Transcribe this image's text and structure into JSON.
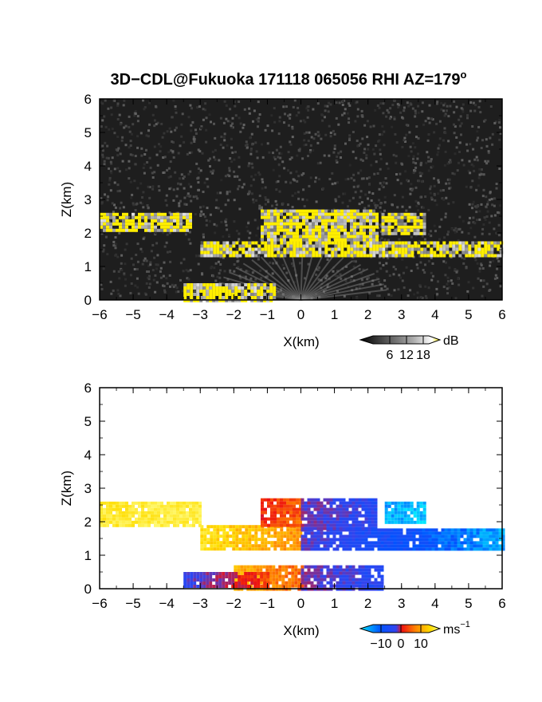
{
  "figure": {
    "title": "3D−CDL@Fukuoka 171118 065056 RHI AZ=179",
    "title_superscript": "o"
  },
  "chart_data": [
    {
      "type": "heatmap",
      "name": "reflectivity",
      "xlabel": "X(km)",
      "ylabel": "Z(km)",
      "xlim": [
        -6,
        6
      ],
      "ylim": [
        0,
        6
      ],
      "x_ticks": [
        -6,
        -5,
        -4,
        -3,
        -2,
        -1,
        0,
        1,
        2,
        3,
        4,
        5,
        6
      ],
      "y_ticks": [
        0,
        1,
        2,
        3,
        4,
        5,
        6
      ],
      "x_tick_labels": [
        "−6",
        "−5",
        "−4",
        "−3",
        "−2",
        "−1",
        "0",
        "1",
        "2",
        "3",
        "4",
        "5",
        "6"
      ],
      "y_tick_labels": [
        "0",
        "1",
        "2",
        "3",
        "4",
        "5",
        "6"
      ],
      "background_color": "#1e1e1e",
      "saturation_color": "#ffee00",
      "colorbar": {
        "unit": "dB",
        "ticks": [
          6,
          12,
          18
        ],
        "tick_labels": [
          "6",
          "12",
          "18"
        ],
        "range": [
          0,
          20
        ],
        "colors": [
          "#000000",
          "#555555",
          "#aaaaaa",
          "#ffffff",
          "#ffee00"
        ]
      },
      "regions": [
        {
          "x0": -6.0,
          "x1": -3.3,
          "z0": 2.1,
          "z1": 2.6,
          "level": 16
        },
        {
          "x0": -3.0,
          "x1": 6.0,
          "z0": 1.3,
          "z1": 1.75,
          "level": 16
        },
        {
          "x0": -1.2,
          "x1": 2.3,
          "z0": 1.75,
          "z1": 2.7,
          "level": 15
        },
        {
          "x0": 2.4,
          "x1": 3.7,
          "z0": 2.0,
          "z1": 2.6,
          "level": 14
        },
        {
          "x0": -3.5,
          "x1": -0.8,
          "z0": 0.0,
          "z1": 0.5,
          "level": 16
        }
      ]
    },
    {
      "type": "heatmap",
      "name": "doppler_velocity",
      "xlabel": "X(km)",
      "ylabel": "Z(km)",
      "xlim": [
        -6,
        6
      ],
      "ylim": [
        0,
        6
      ],
      "x_ticks": [
        -6,
        -5,
        -4,
        -3,
        -2,
        -1,
        0,
        1,
        2,
        3,
        4,
        5,
        6
      ],
      "y_ticks": [
        0,
        1,
        2,
        3,
        4,
        5,
        6
      ],
      "x_tick_labels": [
        "−6",
        "−5",
        "−4",
        "−3",
        "−2",
        "−1",
        "0",
        "1",
        "2",
        "3",
        "4",
        "5",
        "6"
      ],
      "y_tick_labels": [
        "0",
        "1",
        "2",
        "3",
        "4",
        "5",
        "6"
      ],
      "background_color": "#ffffff",
      "colorbar": {
        "unit": "ms",
        "unit_superscript": "−1",
        "ticks": [
          -10,
          0,
          10
        ],
        "tick_labels": [
          "−10",
          "0",
          "10"
        ],
        "range": [
          -14,
          14
        ],
        "colors": [
          "#00e5ff",
          "#0055ff",
          "#3344ee",
          "#ee1111",
          "#ff8800",
          "#ffdd00",
          "#ffff88"
        ]
      },
      "regions": [
        {
          "x0": -6.0,
          "x1": -3.0,
          "z0": 1.9,
          "z1": 2.6,
          "v_left": 11,
          "v_right": 12
        },
        {
          "x0": -3.0,
          "x1": 0.0,
          "z0": 1.2,
          "z1": 1.9,
          "v_left": 10,
          "v_right": 5
        },
        {
          "x0": 0.0,
          "x1": 6.0,
          "z0": 1.2,
          "z1": 1.8,
          "v_left": -4,
          "v_right": -12
        },
        {
          "x0": -1.2,
          "x1": 0.0,
          "z0": 1.9,
          "z1": 2.7,
          "v_left": 1,
          "v_right": 3
        },
        {
          "x0": 0.0,
          "x1": 2.2,
          "z0": 1.8,
          "z1": 2.7,
          "v_left": -3,
          "v_right": -6
        },
        {
          "x0": 2.5,
          "x1": 3.7,
          "z0": 2.0,
          "z1": 2.6,
          "v_left": -12,
          "v_right": -13
        },
        {
          "x0": -2.0,
          "x1": 0.0,
          "z0": 0.0,
          "z1": 0.7,
          "v_left": 7,
          "v_right": 3
        },
        {
          "x0": 0.0,
          "x1": 2.4,
          "z0": 0.0,
          "z1": 0.7,
          "v_left": -3,
          "v_right": -6
        },
        {
          "x0": -3.5,
          "x1": -1.0,
          "z0": 0.1,
          "z1": 0.5,
          "v_left": -5,
          "v_right": 2
        }
      ]
    }
  ]
}
